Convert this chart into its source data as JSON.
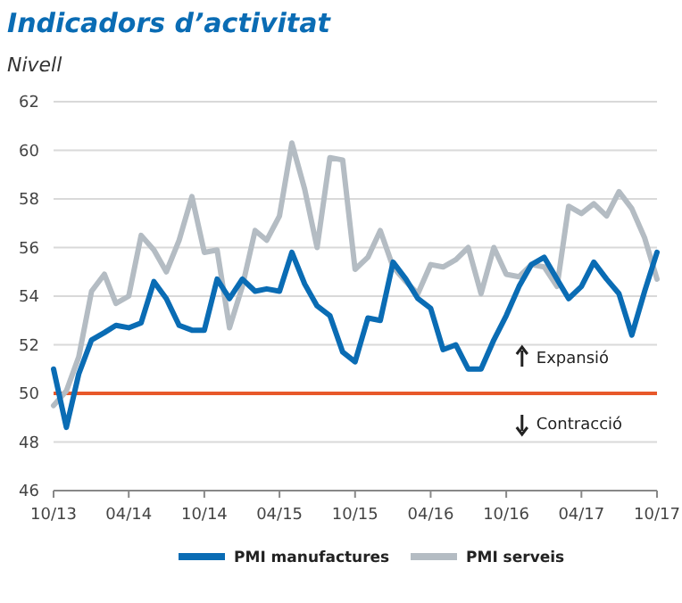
{
  "chart_data": {
    "type": "line",
    "title": "Indicadors d’activitat",
    "subtitle": "Nivell",
    "x": [
      "2013-10",
      "2013-11",
      "2013-12",
      "2014-01",
      "2014-02",
      "2014-03",
      "2014-04",
      "2014-05",
      "2014-06",
      "2014-07",
      "2014-08",
      "2014-09",
      "2014-10",
      "2014-11",
      "2014-12",
      "2015-01",
      "2015-02",
      "2015-03",
      "2015-04",
      "2015-05",
      "2015-06",
      "2015-07",
      "2015-08",
      "2015-09",
      "2015-10",
      "2015-11",
      "2015-12",
      "2016-01",
      "2016-02",
      "2016-03",
      "2016-04",
      "2016-05",
      "2016-06",
      "2016-07",
      "2016-08",
      "2016-09",
      "2016-10",
      "2016-11",
      "2016-12",
      "2017-01",
      "2017-02",
      "2017-03",
      "2017-04",
      "2017-05",
      "2017-06",
      "2017-07",
      "2017-08",
      "2017-09",
      "2017-10"
    ],
    "series": [
      {
        "name": "PMI manufactures",
        "color": "#0a6cb4",
        "values": [
          51.0,
          48.6,
          50.8,
          52.2,
          52.5,
          52.8,
          52.7,
          52.9,
          54.6,
          53.9,
          52.8,
          52.6,
          52.6,
          54.7,
          53.9,
          54.7,
          54.2,
          54.3,
          54.2,
          55.8,
          54.5,
          53.6,
          53.2,
          51.7,
          51.3,
          53.1,
          53.0,
          55.4,
          54.7,
          53.9,
          53.5,
          51.8,
          52.0,
          51.0,
          51.0,
          52.2,
          53.2,
          54.4,
          55.3,
          55.6,
          54.7,
          53.9,
          54.4,
          55.4,
          54.7,
          54.1,
          52.4,
          54.2,
          55.8
        ]
      },
      {
        "name": "PMI serveis",
        "color": "#b4bcc3",
        "values": [
          49.5,
          50.1,
          51.5,
          54.2,
          54.9,
          53.7,
          54.0,
          56.5,
          55.9,
          55.0,
          56.3,
          58.1,
          55.8,
          55.9,
          52.7,
          54.4,
          56.7,
          56.3,
          57.3,
          60.3,
          58.4,
          56.0,
          59.7,
          59.6,
          55.1,
          55.6,
          56.7,
          55.2,
          54.6,
          54.1,
          55.3,
          55.2,
          55.5,
          56.0,
          54.1,
          56.0,
          54.9,
          54.8,
          55.3,
          55.2,
          54.4,
          57.7,
          57.4,
          57.8,
          57.3,
          58.3,
          57.6,
          56.4,
          54.7
        ]
      }
    ],
    "xlim": [
      "2013-10",
      "2017-10"
    ],
    "xticks": [
      {
        "value": "2013-10",
        "label": "10/13"
      },
      {
        "value": "2014-04",
        "label": "04/14"
      },
      {
        "value": "2014-10",
        "label": "10/14"
      },
      {
        "value": "2015-04",
        "label": "04/15"
      },
      {
        "value": "2015-10",
        "label": "10/15"
      },
      {
        "value": "2016-04",
        "label": "04/16"
      },
      {
        "value": "2016-10",
        "label": "10/16"
      },
      {
        "value": "2017-04",
        "label": "04/17"
      },
      {
        "value": "2017-10",
        "label": "10/17"
      }
    ],
    "ylim": [
      46,
      62
    ],
    "yticks": [
      46,
      48,
      50,
      52,
      54,
      56,
      58,
      60,
      62
    ],
    "grid": "y",
    "ref_lines": [
      {
        "axis": "y",
        "value": 50,
        "color": "#e8582a"
      }
    ],
    "annotations": [
      "Expansió",
      "Contracció"
    ],
    "legend": "bottom"
  }
}
